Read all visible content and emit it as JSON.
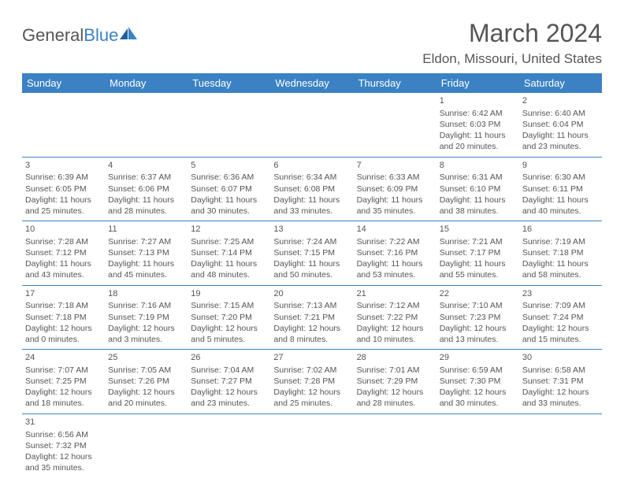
{
  "logo": {
    "text1": "General",
    "text2": "Blue"
  },
  "title": "March 2024",
  "location": "Eldon, Missouri, United States",
  "colors": {
    "header_bg": "#3b82c4",
    "header_fg": "#ffffff",
    "text": "#555555",
    "border": "#3b82c4",
    "logo_blue": "#3b82c4"
  },
  "day_headers": [
    "Sunday",
    "Monday",
    "Tuesday",
    "Wednesday",
    "Thursday",
    "Friday",
    "Saturday"
  ],
  "first_weekday": 5,
  "days": [
    {
      "n": 1,
      "sunrise": "6:42 AM",
      "sunset": "6:03 PM",
      "daylight": "11 hours and 20 minutes."
    },
    {
      "n": 2,
      "sunrise": "6:40 AM",
      "sunset": "6:04 PM",
      "daylight": "11 hours and 23 minutes."
    },
    {
      "n": 3,
      "sunrise": "6:39 AM",
      "sunset": "6:05 PM",
      "daylight": "11 hours and 25 minutes."
    },
    {
      "n": 4,
      "sunrise": "6:37 AM",
      "sunset": "6:06 PM",
      "daylight": "11 hours and 28 minutes."
    },
    {
      "n": 5,
      "sunrise": "6:36 AM",
      "sunset": "6:07 PM",
      "daylight": "11 hours and 30 minutes."
    },
    {
      "n": 6,
      "sunrise": "6:34 AM",
      "sunset": "6:08 PM",
      "daylight": "11 hours and 33 minutes."
    },
    {
      "n": 7,
      "sunrise": "6:33 AM",
      "sunset": "6:09 PM",
      "daylight": "11 hours and 35 minutes."
    },
    {
      "n": 8,
      "sunrise": "6:31 AM",
      "sunset": "6:10 PM",
      "daylight": "11 hours and 38 minutes."
    },
    {
      "n": 9,
      "sunrise": "6:30 AM",
      "sunset": "6:11 PM",
      "daylight": "11 hours and 40 minutes."
    },
    {
      "n": 10,
      "sunrise": "7:28 AM",
      "sunset": "7:12 PM",
      "daylight": "11 hours and 43 minutes."
    },
    {
      "n": 11,
      "sunrise": "7:27 AM",
      "sunset": "7:13 PM",
      "daylight": "11 hours and 45 minutes."
    },
    {
      "n": 12,
      "sunrise": "7:25 AM",
      "sunset": "7:14 PM",
      "daylight": "11 hours and 48 minutes."
    },
    {
      "n": 13,
      "sunrise": "7:24 AM",
      "sunset": "7:15 PM",
      "daylight": "11 hours and 50 minutes."
    },
    {
      "n": 14,
      "sunrise": "7:22 AM",
      "sunset": "7:16 PM",
      "daylight": "11 hours and 53 minutes."
    },
    {
      "n": 15,
      "sunrise": "7:21 AM",
      "sunset": "7:17 PM",
      "daylight": "11 hours and 55 minutes."
    },
    {
      "n": 16,
      "sunrise": "7:19 AM",
      "sunset": "7:18 PM",
      "daylight": "11 hours and 58 minutes."
    },
    {
      "n": 17,
      "sunrise": "7:18 AM",
      "sunset": "7:18 PM",
      "daylight": "12 hours and 0 minutes."
    },
    {
      "n": 18,
      "sunrise": "7:16 AM",
      "sunset": "7:19 PM",
      "daylight": "12 hours and 3 minutes."
    },
    {
      "n": 19,
      "sunrise": "7:15 AM",
      "sunset": "7:20 PM",
      "daylight": "12 hours and 5 minutes."
    },
    {
      "n": 20,
      "sunrise": "7:13 AM",
      "sunset": "7:21 PM",
      "daylight": "12 hours and 8 minutes."
    },
    {
      "n": 21,
      "sunrise": "7:12 AM",
      "sunset": "7:22 PM",
      "daylight": "12 hours and 10 minutes."
    },
    {
      "n": 22,
      "sunrise": "7:10 AM",
      "sunset": "7:23 PM",
      "daylight": "12 hours and 13 minutes."
    },
    {
      "n": 23,
      "sunrise": "7:09 AM",
      "sunset": "7:24 PM",
      "daylight": "12 hours and 15 minutes."
    },
    {
      "n": 24,
      "sunrise": "7:07 AM",
      "sunset": "7:25 PM",
      "daylight": "12 hours and 18 minutes."
    },
    {
      "n": 25,
      "sunrise": "7:05 AM",
      "sunset": "7:26 PM",
      "daylight": "12 hours and 20 minutes."
    },
    {
      "n": 26,
      "sunrise": "7:04 AM",
      "sunset": "7:27 PM",
      "daylight": "12 hours and 23 minutes."
    },
    {
      "n": 27,
      "sunrise": "7:02 AM",
      "sunset": "7:28 PM",
      "daylight": "12 hours and 25 minutes."
    },
    {
      "n": 28,
      "sunrise": "7:01 AM",
      "sunset": "7:29 PM",
      "daylight": "12 hours and 28 minutes."
    },
    {
      "n": 29,
      "sunrise": "6:59 AM",
      "sunset": "7:30 PM",
      "daylight": "12 hours and 30 minutes."
    },
    {
      "n": 30,
      "sunrise": "6:58 AM",
      "sunset": "7:31 PM",
      "daylight": "12 hours and 33 minutes."
    },
    {
      "n": 31,
      "sunrise": "6:56 AM",
      "sunset": "7:32 PM",
      "daylight": "12 hours and 35 minutes."
    }
  ]
}
